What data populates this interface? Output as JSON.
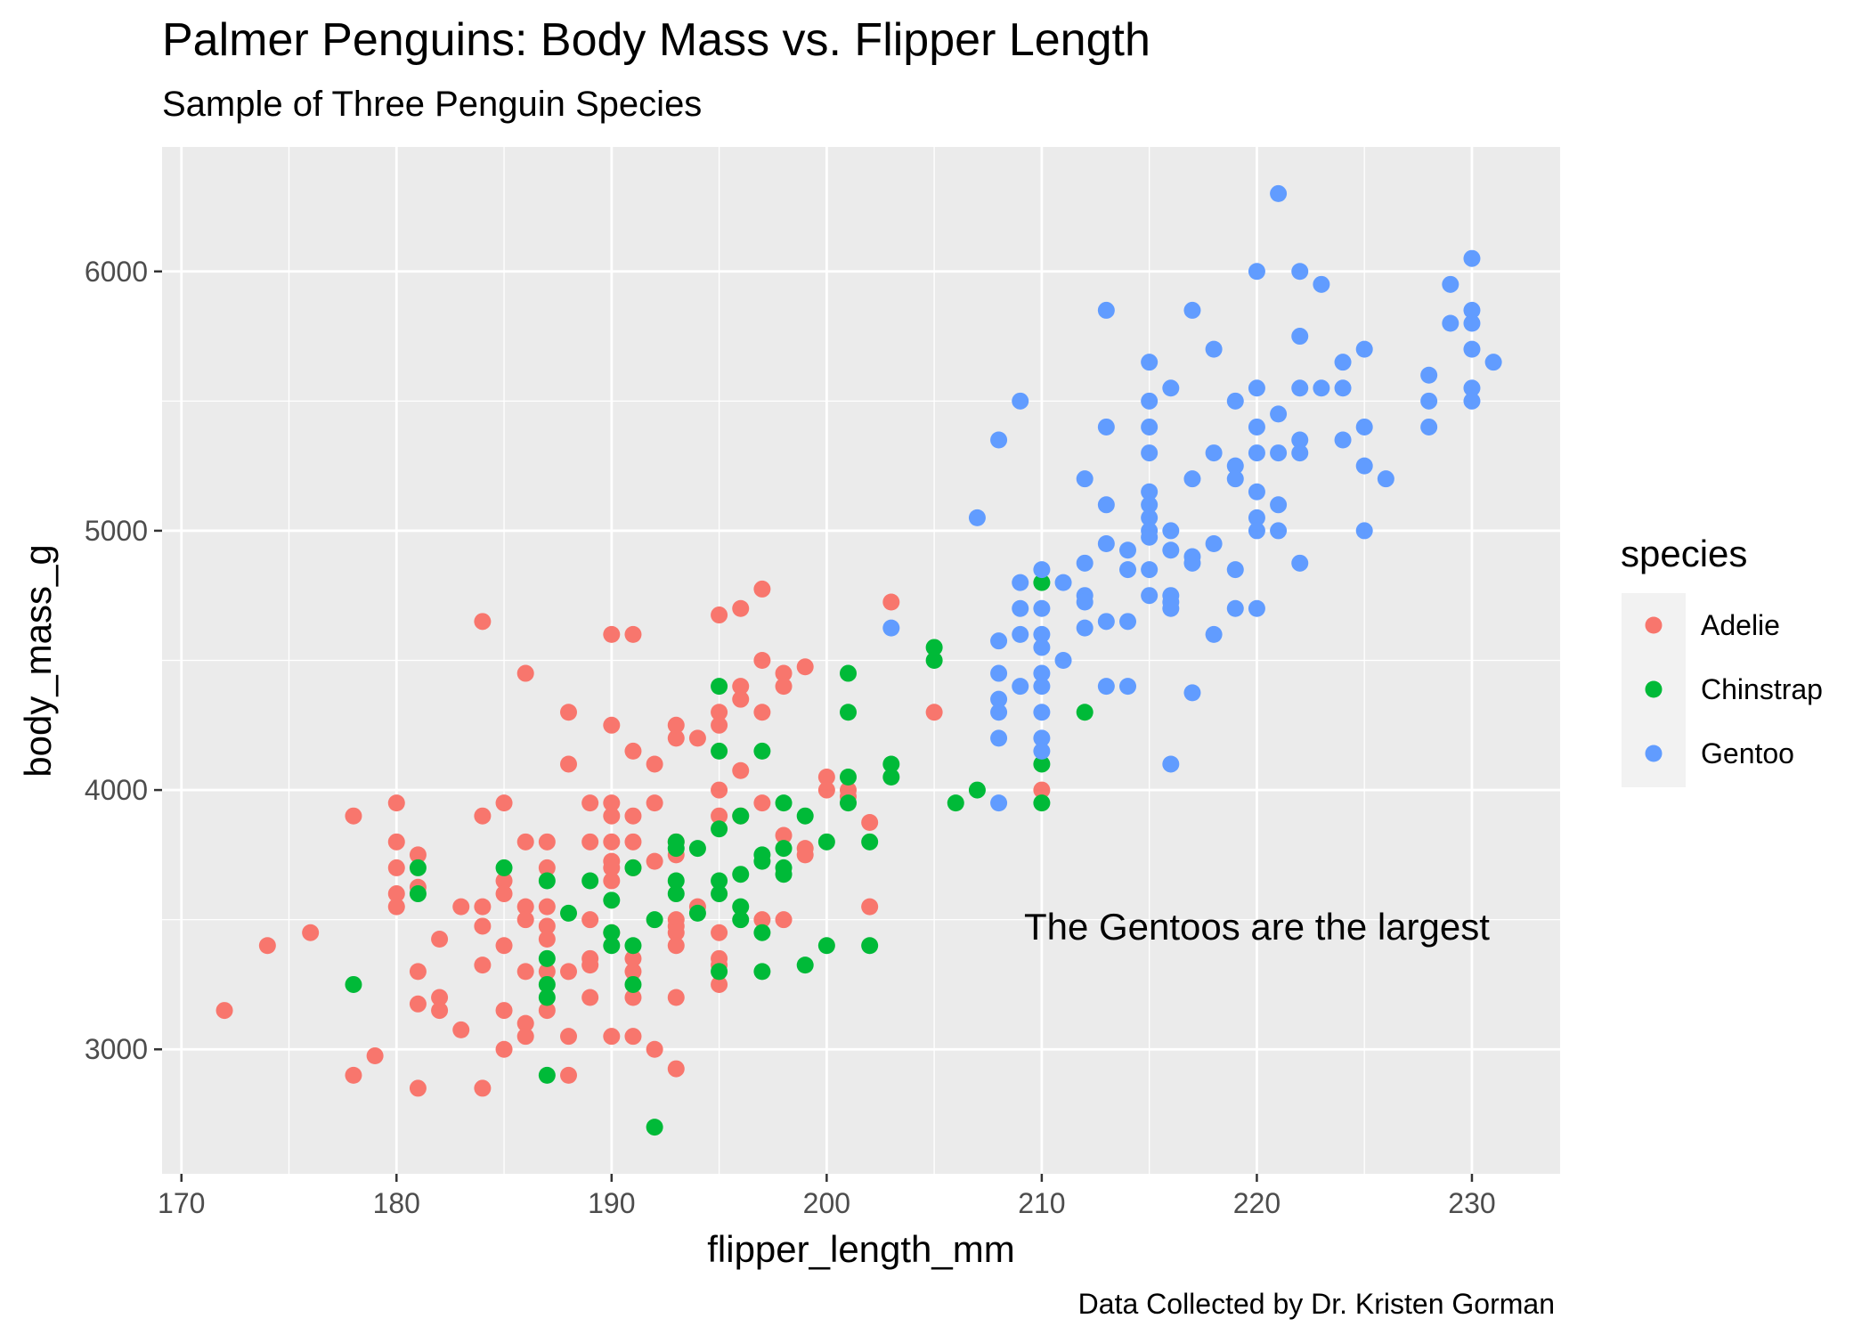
{
  "chart_data": {
    "type": "scatter",
    "title": "Palmer Penguins: Body Mass vs. Flipper Length",
    "subtitle": "Sample of Three Penguin Species",
    "xlabel": "flipper_length_mm",
    "ylabel": "body_mass_g",
    "caption": "Data Collected by Dr. Kristen Gorman",
    "annotation": {
      "text": "The Gentoos are the largest",
      "x": 220,
      "y": 3475
    },
    "xlim": [
      169.1,
      234.1
    ],
    "ylim": [
      2520,
      6480
    ],
    "x_ticks": [
      170,
      180,
      190,
      200,
      210,
      220,
      230
    ],
    "y_ticks": [
      3000,
      4000,
      5000,
      6000
    ],
    "grid": true,
    "legend_title": "species",
    "legend_position": "right",
    "series": [
      {
        "name": "Adelie",
        "color": "#F8766D",
        "points": [
          [
            172,
            3150
          ],
          [
            174,
            3400
          ],
          [
            176,
            3450
          ],
          [
            178,
            3900
          ],
          [
            178,
            2900
          ],
          [
            179,
            2975
          ],
          [
            180,
            3950
          ],
          [
            180,
            3800
          ],
          [
            180,
            3700
          ],
          [
            180,
            3600
          ],
          [
            180,
            3550
          ],
          [
            181,
            3750
          ],
          [
            181,
            3625
          ],
          [
            181,
            3300
          ],
          [
            181,
            3175
          ],
          [
            181,
            2850
          ],
          [
            182,
            3425
          ],
          [
            182,
            3200
          ],
          [
            182,
            3150
          ],
          [
            183,
            3550
          ],
          [
            183,
            3075
          ],
          [
            184,
            4650
          ],
          [
            184,
            3900
          ],
          [
            184,
            3550
          ],
          [
            184,
            3475
          ],
          [
            184,
            3325
          ],
          [
            184,
            2850
          ],
          [
            185,
            3950
          ],
          [
            185,
            3650
          ],
          [
            185,
            3600
          ],
          [
            185,
            3400
          ],
          [
            185,
            3150
          ],
          [
            185,
            3000
          ],
          [
            186,
            4450
          ],
          [
            186,
            3800
          ],
          [
            186,
            3550
          ],
          [
            186,
            3500
          ],
          [
            186,
            3300
          ],
          [
            186,
            3100
          ],
          [
            186,
            3050
          ],
          [
            187,
            3800
          ],
          [
            187,
            3700
          ],
          [
            187,
            3550
          ],
          [
            187,
            3475
          ],
          [
            187,
            3425
          ],
          [
            187,
            3300
          ],
          [
            187,
            3150
          ],
          [
            188,
            4300
          ],
          [
            188,
            4100
          ],
          [
            188,
            3300
          ],
          [
            188,
            3050
          ],
          [
            188,
            2900
          ],
          [
            189,
            3950
          ],
          [
            189,
            3800
          ],
          [
            189,
            3500
          ],
          [
            189,
            3350
          ],
          [
            189,
            3325
          ],
          [
            189,
            3200
          ],
          [
            190,
            4600
          ],
          [
            190,
            4250
          ],
          [
            190,
            3950
          ],
          [
            190,
            3900
          ],
          [
            190,
            3800
          ],
          [
            190,
            3725
          ],
          [
            190,
            3700
          ],
          [
            190,
            3650
          ],
          [
            190,
            3450
          ],
          [
            190,
            3050
          ],
          [
            191,
            4600
          ],
          [
            191,
            4150
          ],
          [
            191,
            3900
          ],
          [
            191,
            3800
          ],
          [
            191,
            3700
          ],
          [
            191,
            3350
          ],
          [
            191,
            3300
          ],
          [
            191,
            3200
          ],
          [
            191,
            3050
          ],
          [
            192,
            4100
          ],
          [
            192,
            3950
          ],
          [
            192,
            3725
          ],
          [
            192,
            3000
          ],
          [
            193,
            4250
          ],
          [
            193,
            4200
          ],
          [
            193,
            3800
          ],
          [
            193,
            3750
          ],
          [
            193,
            3500
          ],
          [
            193,
            3475
          ],
          [
            193,
            3450
          ],
          [
            193,
            3400
          ],
          [
            193,
            3200
          ],
          [
            193,
            2925
          ],
          [
            194,
            4200
          ],
          [
            194,
            3550
          ],
          [
            195,
            4675
          ],
          [
            195,
            4300
          ],
          [
            195,
            4250
          ],
          [
            195,
            4000
          ],
          [
            195,
            3900
          ],
          [
            195,
            3450
          ],
          [
            195,
            3350
          ],
          [
            195,
            3325
          ],
          [
            195,
            3250
          ],
          [
            196,
            4700
          ],
          [
            196,
            4400
          ],
          [
            196,
            4350
          ],
          [
            196,
            4075
          ],
          [
            196,
            3900
          ],
          [
            197,
            4775
          ],
          [
            197,
            4500
          ],
          [
            197,
            4300
          ],
          [
            197,
            3950
          ],
          [
            197,
            3500
          ],
          [
            198,
            4450
          ],
          [
            198,
            4400
          ],
          [
            198,
            3825
          ],
          [
            198,
            3500
          ],
          [
            199,
            4475
          ],
          [
            199,
            3775
          ],
          [
            199,
            3750
          ],
          [
            200,
            4050
          ],
          [
            200,
            4000
          ],
          [
            201,
            4000
          ],
          [
            201,
            3975
          ],
          [
            202,
            3875
          ],
          [
            202,
            3550
          ],
          [
            203,
            4725
          ],
          [
            205,
            4300
          ],
          [
            210,
            4000
          ]
        ]
      },
      {
        "name": "Chinstrap",
        "color": "#00BA38",
        "points": [
          [
            178,
            3250
          ],
          [
            181,
            3700
          ],
          [
            181,
            3600
          ],
          [
            185,
            3700
          ],
          [
            187,
            3650
          ],
          [
            187,
            3350
          ],
          [
            187,
            3250
          ],
          [
            187,
            3200
          ],
          [
            187,
            2900
          ],
          [
            188,
            3525
          ],
          [
            189,
            3650
          ],
          [
            190,
            3575
          ],
          [
            190,
            3450
          ],
          [
            190,
            3400
          ],
          [
            191,
            3700
          ],
          [
            191,
            3400
          ],
          [
            191,
            3250
          ],
          [
            192,
            3500
          ],
          [
            192,
            2700
          ],
          [
            193,
            3800
          ],
          [
            193,
            3775
          ],
          [
            193,
            3650
          ],
          [
            193,
            3600
          ],
          [
            194,
            3775
          ],
          [
            194,
            3525
          ],
          [
            195,
            4400
          ],
          [
            195,
            4150
          ],
          [
            195,
            3850
          ],
          [
            195,
            3650
          ],
          [
            195,
            3600
          ],
          [
            195,
            3300
          ],
          [
            196,
            3900
          ],
          [
            196,
            3675
          ],
          [
            196,
            3550
          ],
          [
            196,
            3500
          ],
          [
            197,
            4150
          ],
          [
            197,
            3750
          ],
          [
            197,
            3725
          ],
          [
            197,
            3450
          ],
          [
            197,
            3300
          ],
          [
            198,
            3950
          ],
          [
            198,
            3775
          ],
          [
            198,
            3700
          ],
          [
            198,
            3675
          ],
          [
            199,
            3900
          ],
          [
            199,
            3325
          ],
          [
            200,
            3800
          ],
          [
            200,
            3400
          ],
          [
            201,
            4450
          ],
          [
            201,
            4300
          ],
          [
            201,
            4050
          ],
          [
            201,
            3950
          ],
          [
            202,
            3800
          ],
          [
            202,
            3400
          ],
          [
            203,
            4100
          ],
          [
            203,
            4050
          ],
          [
            205,
            4550
          ],
          [
            205,
            4500
          ],
          [
            206,
            3950
          ],
          [
            207,
            4000
          ],
          [
            210,
            4800
          ],
          [
            210,
            4100
          ],
          [
            210,
            3950
          ],
          [
            212,
            4300
          ]
        ]
      },
      {
        "name": "Gentoo",
        "color": "#619CFF",
        "points": [
          [
            203,
            4625
          ],
          [
            207,
            5050
          ],
          [
            208,
            5350
          ],
          [
            208,
            4575
          ],
          [
            208,
            4450
          ],
          [
            208,
            4350
          ],
          [
            208,
            4300
          ],
          [
            208,
            4200
          ],
          [
            208,
            3950
          ],
          [
            209,
            5500
          ],
          [
            209,
            4800
          ],
          [
            209,
            4700
          ],
          [
            209,
            4600
          ],
          [
            209,
            4400
          ],
          [
            210,
            4850
          ],
          [
            210,
            4700
          ],
          [
            210,
            4600
          ],
          [
            210,
            4550
          ],
          [
            210,
            4450
          ],
          [
            210,
            4400
          ],
          [
            210,
            4300
          ],
          [
            210,
            4200
          ],
          [
            210,
            4150
          ],
          [
            211,
            4800
          ],
          [
            211,
            4500
          ],
          [
            212,
            5200
          ],
          [
            212,
            4875
          ],
          [
            212,
            4750
          ],
          [
            212,
            4725
          ],
          [
            212,
            4625
          ],
          [
            213,
            5850
          ],
          [
            213,
            5400
          ],
          [
            213,
            5100
          ],
          [
            213,
            4950
          ],
          [
            213,
            4650
          ],
          [
            213,
            4400
          ],
          [
            214,
            4925
          ],
          [
            214,
            4850
          ],
          [
            214,
            4650
          ],
          [
            214,
            4400
          ],
          [
            215,
            5650
          ],
          [
            215,
            5500
          ],
          [
            215,
            5400
          ],
          [
            215,
            5300
          ],
          [
            215,
            5150
          ],
          [
            215,
            5100
          ],
          [
            215,
            5050
          ],
          [
            215,
            5000
          ],
          [
            215,
            4975
          ],
          [
            215,
            4850
          ],
          [
            215,
            4750
          ],
          [
            216,
            5550
          ],
          [
            216,
            5000
          ],
          [
            216,
            4925
          ],
          [
            216,
            4750
          ],
          [
            216,
            4725
          ],
          [
            216,
            4700
          ],
          [
            216,
            4100
          ],
          [
            217,
            5850
          ],
          [
            217,
            5200
          ],
          [
            217,
            4900
          ],
          [
            217,
            4875
          ],
          [
            217,
            4375
          ],
          [
            218,
            5700
          ],
          [
            218,
            5300
          ],
          [
            218,
            4950
          ],
          [
            218,
            4600
          ],
          [
            219,
            5500
          ],
          [
            219,
            5250
          ],
          [
            219,
            5200
          ],
          [
            219,
            4850
          ],
          [
            219,
            4700
          ],
          [
            220,
            6000
          ],
          [
            220,
            5550
          ],
          [
            220,
            5400
          ],
          [
            220,
            5300
          ],
          [
            220,
            5150
          ],
          [
            220,
            5050
          ],
          [
            220,
            5000
          ],
          [
            220,
            4700
          ],
          [
            221,
            6300
          ],
          [
            221,
            5450
          ],
          [
            221,
            5300
          ],
          [
            221,
            5100
          ],
          [
            221,
            5000
          ],
          [
            222,
            6000
          ],
          [
            222,
            5750
          ],
          [
            222,
            5550
          ],
          [
            222,
            5350
          ],
          [
            222,
            5300
          ],
          [
            222,
            4875
          ],
          [
            223,
            5950
          ],
          [
            223,
            5550
          ],
          [
            224,
            5650
          ],
          [
            224,
            5550
          ],
          [
            224,
            5350
          ],
          [
            225,
            5700
          ],
          [
            225,
            5400
          ],
          [
            225,
            5250
          ],
          [
            225,
            5000
          ],
          [
            226,
            5200
          ],
          [
            228,
            5600
          ],
          [
            228,
            5500
          ],
          [
            228,
            5400
          ],
          [
            229,
            5950
          ],
          [
            229,
            5800
          ],
          [
            230,
            6050
          ],
          [
            230,
            5850
          ],
          [
            230,
            5800
          ],
          [
            230,
            5700
          ],
          [
            230,
            5550
          ],
          [
            230,
            5500
          ],
          [
            231,
            5650
          ]
        ]
      }
    ]
  }
}
